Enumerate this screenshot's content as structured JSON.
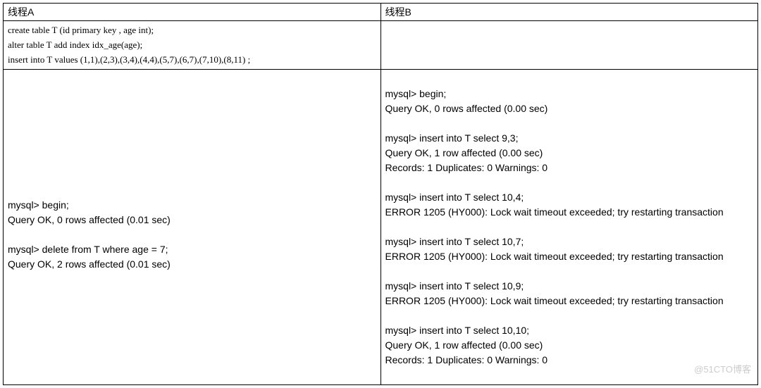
{
  "table": {
    "headers": {
      "colA": "线程A",
      "colB": "线程B"
    },
    "setup": {
      "line1": "create table T (id primary key , age int);",
      "line2": "alter table T add index idx_age(age);",
      "line3": "insert into T values (1,1),(2,3),(3,4),(4,4),(5,7),(6,7),(7,10),(8,11)  ;"
    },
    "sessionA": "\nmysql> begin;\nQuery OK, 0 rows affected (0.01 sec)\n\nmysql> delete from T where age = 7;\nQuery OK, 2 rows affected (0.01 sec)\n",
    "sessionB": "mysql> begin;\nQuery OK, 0 rows affected (0.00 sec)\n\nmysql> insert into T select 9,3;\nQuery OK, 1 row affected (0.00 sec)\nRecords: 1  Duplicates: 0  Warnings: 0\n\nmysql> insert into T select 10,4;\nERROR 1205 (HY000): Lock wait timeout exceeded; try restarting transaction\n\nmysql> insert into T select 10,7;\nERROR 1205 (HY000): Lock wait timeout exceeded; try restarting transaction\n\nmysql> insert into T select 10,9;\nERROR 1205 (HY000): Lock wait timeout exceeded; try restarting transaction\n\nmysql> insert into T select 10,10;\nQuery OK, 1 row affected (0.00 sec)\nRecords: 1  Duplicates: 0  Warnings: 0"
  },
  "watermark": "@51CTO博客"
}
